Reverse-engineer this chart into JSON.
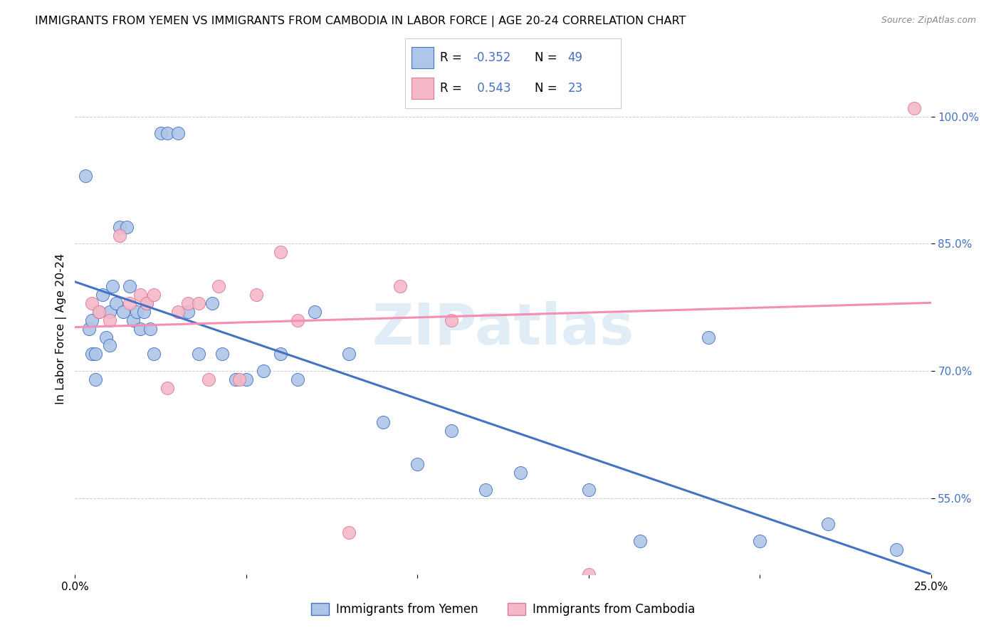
{
  "title": "IMMIGRANTS FROM YEMEN VS IMMIGRANTS FROM CAMBODIA IN LABOR FORCE | AGE 20-24 CORRELATION CHART",
  "source": "Source: ZipAtlas.com",
  "ylabel": "In Labor Force | Age 20-24",
  "xmin": 0.0,
  "xmax": 0.25,
  "ymin": 0.46,
  "ymax": 1.04,
  "xticks": [
    0.0,
    0.05,
    0.1,
    0.15,
    0.2,
    0.25
  ],
  "xtick_labels": [
    "0.0%",
    "",
    "",
    "",
    "",
    "25.0%"
  ],
  "yticks": [
    0.55,
    0.7,
    0.85,
    1.0
  ],
  "ytick_labels": [
    "55.0%",
    "70.0%",
    "85.0%",
    "100.0%"
  ],
  "legend_r_blue": "-0.352",
  "legend_n_blue": "49",
  "legend_r_pink": "0.543",
  "legend_n_pink": "23",
  "blue_color": "#aec6e8",
  "pink_color": "#f4b8c8",
  "blue_line_color": "#4472c4",
  "pink_line_color": "#f48fb1",
  "watermark": "ZIPatlas",
  "blue_points_x": [
    0.003,
    0.004,
    0.005,
    0.005,
    0.006,
    0.006,
    0.007,
    0.008,
    0.009,
    0.01,
    0.01,
    0.011,
    0.012,
    0.013,
    0.014,
    0.015,
    0.016,
    0.017,
    0.018,
    0.019,
    0.02,
    0.021,
    0.022,
    0.023,
    0.025,
    0.027,
    0.03,
    0.033,
    0.036,
    0.04,
    0.043,
    0.047,
    0.05,
    0.055,
    0.06,
    0.065,
    0.07,
    0.08,
    0.09,
    0.1,
    0.11,
    0.12,
    0.13,
    0.15,
    0.165,
    0.185,
    0.2,
    0.22,
    0.24
  ],
  "blue_points_y": [
    0.93,
    0.75,
    0.76,
    0.72,
    0.72,
    0.69,
    0.77,
    0.79,
    0.74,
    0.77,
    0.73,
    0.8,
    0.78,
    0.87,
    0.77,
    0.87,
    0.8,
    0.76,
    0.77,
    0.75,
    0.77,
    0.78,
    0.75,
    0.72,
    0.98,
    0.98,
    0.98,
    0.77,
    0.72,
    0.78,
    0.72,
    0.69,
    0.69,
    0.7,
    0.72,
    0.69,
    0.77,
    0.72,
    0.64,
    0.59,
    0.63,
    0.56,
    0.58,
    0.56,
    0.5,
    0.74,
    0.5,
    0.52,
    0.49
  ],
  "pink_points_x": [
    0.005,
    0.007,
    0.01,
    0.013,
    0.016,
    0.019,
    0.021,
    0.023,
    0.027,
    0.03,
    0.033,
    0.036,
    0.039,
    0.042,
    0.048,
    0.053,
    0.06,
    0.065,
    0.08,
    0.095,
    0.11,
    0.15,
    0.245
  ],
  "pink_points_y": [
    0.78,
    0.77,
    0.76,
    0.86,
    0.78,
    0.79,
    0.78,
    0.79,
    0.68,
    0.77,
    0.78,
    0.78,
    0.69,
    0.8,
    0.69,
    0.79,
    0.84,
    0.76,
    0.51,
    0.8,
    0.76,
    0.46,
    1.01
  ]
}
